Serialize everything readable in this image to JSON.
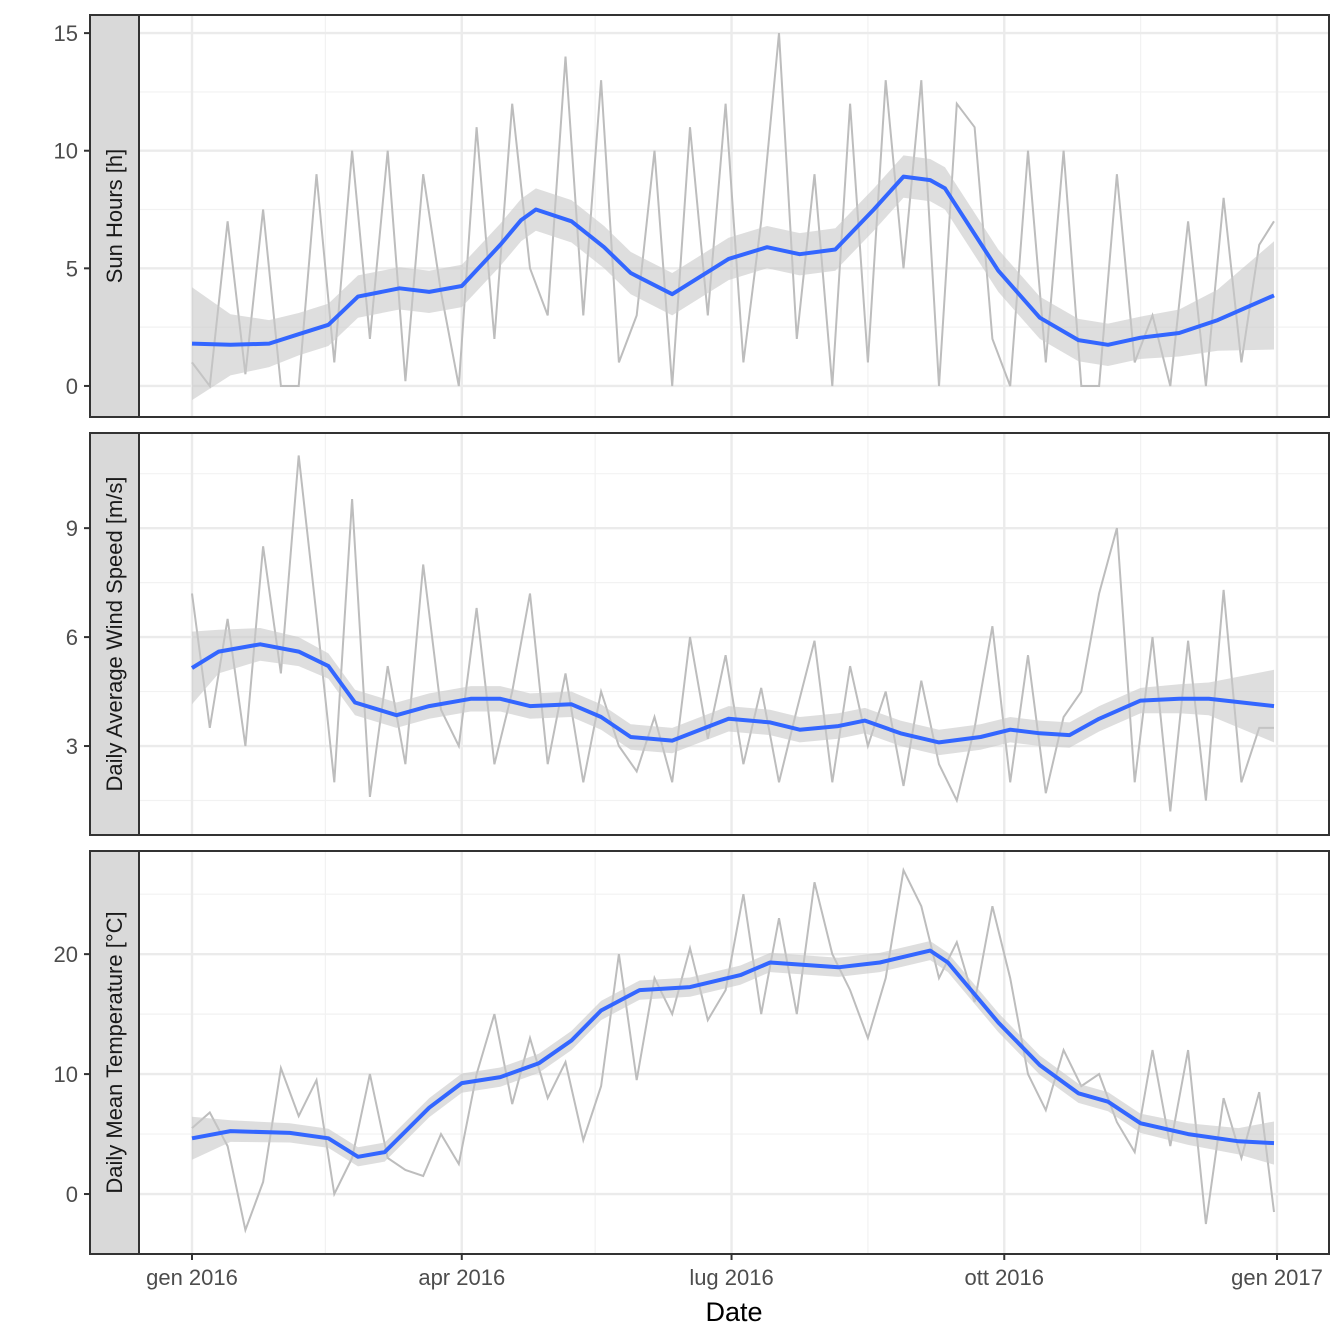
{
  "chart_data": {
    "type": "line",
    "xlabel": "Date",
    "x_ticks": [
      {
        "date": "2016-01-01",
        "label": "gen 2016"
      },
      {
        "date": "2016-04-01",
        "label": "apr 2016"
      },
      {
        "date": "2016-07-01",
        "label": "lug 2016"
      },
      {
        "date": "2016-10-01",
        "label": "ott 2016"
      },
      {
        "date": "2017-01-01",
        "label": "gen 2017"
      }
    ],
    "xlim": [
      "2015-12-14",
      "2017-01-18"
    ],
    "grid": true,
    "colors": {
      "raw": "#bdbdbd",
      "smooth": "#3366ff",
      "band": "#c8c8c8",
      "strip": "#d9d9d9"
    },
    "raw_x": [
      "2016-01-01",
      "2016-01-07",
      "2016-01-13",
      "2016-01-19",
      "2016-01-25",
      "2016-01-31",
      "2016-02-06",
      "2016-02-12",
      "2016-02-18",
      "2016-02-24",
      "2016-03-01",
      "2016-03-07",
      "2016-03-13",
      "2016-03-19",
      "2016-03-25",
      "2016-03-31",
      "2016-04-06",
      "2016-04-12",
      "2016-04-18",
      "2016-04-24",
      "2016-04-30",
      "2016-05-06",
      "2016-05-12",
      "2016-05-18",
      "2016-05-24",
      "2016-05-30",
      "2016-06-05",
      "2016-06-11",
      "2016-06-17",
      "2016-06-23",
      "2016-06-29",
      "2016-07-05",
      "2016-07-11",
      "2016-07-17",
      "2016-07-23",
      "2016-07-29",
      "2016-08-04",
      "2016-08-10",
      "2016-08-16",
      "2016-08-22",
      "2016-08-28",
      "2016-09-03",
      "2016-09-09",
      "2016-09-15",
      "2016-09-21",
      "2016-09-27",
      "2016-10-03",
      "2016-10-09",
      "2016-10-15",
      "2016-10-21",
      "2016-10-27",
      "2016-11-02",
      "2016-11-08",
      "2016-11-14",
      "2016-11-20",
      "2016-11-26",
      "2016-12-02",
      "2016-12-08",
      "2016-12-14",
      "2016-12-20",
      "2016-12-26",
      "2016-12-31"
    ],
    "panels": [
      {
        "strip_label": "Sun Hours [h]",
        "ylim": [
          -1.32,
          15.77
        ],
        "y_ticks": [
          0,
          5,
          10,
          15
        ],
        "y_tick_labels": [
          "0",
          "5",
          "10",
          "15"
        ],
        "raw": [
          1,
          0,
          7,
          0.5,
          7.5,
          0,
          0,
          9,
          1,
          10,
          2,
          10,
          0.2,
          9,
          4,
          0,
          11,
          2,
          12,
          5,
          3,
          14,
          3,
          13,
          1,
          3,
          10,
          0,
          11,
          3,
          12,
          1,
          7,
          15,
          2,
          9,
          0,
          12,
          1,
          13,
          5,
          13,
          0,
          12,
          11,
          2,
          0,
          10,
          1,
          10,
          0,
          0,
          9,
          1,
          3,
          0,
          7,
          0,
          8,
          1,
          6,
          7
        ],
        "smooth_x": [
          "2016-01-01",
          "2016-01-14",
          "2016-01-27",
          "2016-02-06",
          "2016-02-16",
          "2016-02-26",
          "2016-03-11",
          "2016-03-21",
          "2016-04-01",
          "2016-04-14",
          "2016-04-21",
          "2016-04-26",
          "2016-05-08",
          "2016-05-19",
          "2016-05-28",
          "2016-06-11",
          "2016-06-30",
          "2016-07-13",
          "2016-07-24",
          "2016-08-05",
          "2016-08-18",
          "2016-08-28",
          "2016-09-06",
          "2016-09-11",
          "2016-09-29",
          "2016-10-13",
          "2016-10-26",
          "2016-11-05",
          "2016-11-16",
          "2016-11-29",
          "2016-12-12",
          "2016-12-31"
        ],
        "smooth": [
          1.8,
          1.75,
          1.8,
          2.2,
          2.6,
          3.8,
          4.15,
          4.0,
          4.25,
          6.0,
          7.05,
          7.5,
          7.0,
          5.9,
          4.8,
          3.9,
          5.4,
          5.9,
          5.6,
          5.8,
          7.5,
          8.9,
          8.75,
          8.4,
          4.9,
          2.9,
          1.95,
          1.75,
          2.05,
          2.25,
          2.8,
          3.85
        ],
        "ci_halfwidth": [
          2.4,
          1.3,
          1.0,
          0.9,
          0.9,
          0.9,
          0.9,
          0.9,
          0.9,
          0.9,
          0.9,
          0.9,
          0.9,
          0.9,
          0.9,
          0.9,
          0.9,
          0.9,
          0.9,
          0.9,
          0.9,
          0.9,
          0.9,
          0.9,
          0.9,
          0.9,
          0.9,
          0.9,
          0.9,
          1.0,
          1.3,
          2.3
        ]
      },
      {
        "strip_label": "Daily Average Wind Speed [m/s]",
        "ylim": [
          0.55,
          11.62
        ],
        "y_ticks": [
          3,
          6,
          9
        ],
        "y_tick_labels": [
          "3",
          "6",
          "9"
        ],
        "raw": [
          7.2,
          3.5,
          6.5,
          3,
          8.5,
          5,
          11,
          6.6,
          2,
          9.8,
          1.6,
          5.2,
          2.5,
          8,
          4,
          3,
          6.8,
          2.5,
          4.5,
          7.2,
          2.5,
          5,
          2,
          4.5,
          3,
          2.3,
          3.8,
          2,
          6,
          3.2,
          5.5,
          2.5,
          4.6,
          2,
          4,
          5.9,
          2,
          5.2,
          3,
          4.5,
          1.9,
          4.8,
          2.5,
          1.5,
          3.5,
          6.3,
          2,
          5.5,
          1.7,
          3.8,
          4.5,
          7.2,
          9,
          2,
          6,
          1.2,
          5.9,
          1.5,
          7.3,
          2,
          3.5,
          3.5
        ],
        "smooth_x": [
          "2016-01-01",
          "2016-01-10",
          "2016-01-24",
          "2016-02-06",
          "2016-02-16",
          "2016-02-25",
          "2016-03-10",
          "2016-03-21",
          "2016-04-04",
          "2016-04-14",
          "2016-04-24",
          "2016-05-08",
          "2016-05-18",
          "2016-05-28",
          "2016-06-11",
          "2016-06-30",
          "2016-07-14",
          "2016-07-24",
          "2016-08-06",
          "2016-08-15",
          "2016-08-27",
          "2016-09-09",
          "2016-09-23",
          "2016-10-03",
          "2016-10-13",
          "2016-10-23",
          "2016-11-02",
          "2016-11-16",
          "2016-11-29",
          "2016-12-09",
          "2016-12-31"
        ],
        "smooth": [
          5.15,
          5.6,
          5.8,
          5.6,
          5.2,
          4.2,
          3.85,
          4.1,
          4.3,
          4.3,
          4.1,
          4.15,
          3.8,
          3.25,
          3.15,
          3.75,
          3.65,
          3.45,
          3.55,
          3.7,
          3.35,
          3.1,
          3.25,
          3.45,
          3.35,
          3.3,
          3.75,
          4.25,
          4.3,
          4.3,
          4.1
        ],
        "ci_halfwidth": [
          1.0,
          0.6,
          0.45,
          0.4,
          0.35,
          0.35,
          0.35,
          0.35,
          0.35,
          0.35,
          0.35,
          0.35,
          0.35,
          0.35,
          0.35,
          0.35,
          0.35,
          0.35,
          0.35,
          0.35,
          0.35,
          0.35,
          0.35,
          0.35,
          0.35,
          0.35,
          0.35,
          0.35,
          0.4,
          0.45,
          1.0
        ]
      },
      {
        "strip_label": "Daily Mean Temperature [°C]",
        "ylim": [
          -5,
          28.6
        ],
        "y_ticks": [
          0,
          10,
          20
        ],
        "y_tick_labels": [
          "0",
          "10",
          "20"
        ],
        "raw": [
          5.5,
          6.8,
          4,
          -3,
          1,
          10.5,
          6.5,
          9.5,
          0,
          3,
          10,
          3,
          2,
          1.5,
          5,
          2.5,
          10,
          15,
          7.5,
          13,
          8,
          11,
          4.5,
          9,
          20,
          9.5,
          18,
          15,
          20.5,
          14.5,
          17,
          25,
          15,
          23,
          15,
          26,
          20,
          17,
          13,
          18,
          27,
          24,
          18,
          21,
          16,
          24,
          18,
          10,
          7,
          12,
          9,
          10,
          6,
          3.5,
          12,
          4,
          12,
          -2.5,
          8,
          3,
          8.5,
          -1.5
        ],
        "smooth_x": [
          "2016-01-01",
          "2016-01-14",
          "2016-02-03",
          "2016-02-16",
          "2016-02-26",
          "2016-03-06",
          "2016-03-21",
          "2016-04-01",
          "2016-04-14",
          "2016-04-27",
          "2016-05-08",
          "2016-05-18",
          "2016-05-31",
          "2016-06-17",
          "2016-07-04",
          "2016-07-14",
          "2016-08-06",
          "2016-08-20",
          "2016-09-06",
          "2016-09-12",
          "2016-09-29",
          "2016-10-13",
          "2016-10-26",
          "2016-11-05",
          "2016-11-16",
          "2016-12-02",
          "2016-12-19",
          "2016-12-31"
        ],
        "smooth": [
          4.65,
          5.25,
          5.1,
          4.65,
          3.1,
          3.5,
          7.2,
          9.25,
          9.75,
          10.9,
          12.8,
          15.3,
          17.0,
          17.25,
          18.25,
          19.3,
          18.9,
          19.3,
          20.3,
          19.3,
          14.3,
          10.75,
          8.4,
          7.7,
          5.9,
          5.0,
          4.4,
          4.25
        ],
        "ci_halfwidth": [
          1.8,
          0.9,
          0.8,
          0.8,
          0.8,
          0.8,
          0.8,
          0.8,
          0.8,
          0.8,
          0.8,
          0.8,
          0.8,
          0.8,
          0.8,
          0.8,
          0.8,
          0.8,
          0.8,
          0.8,
          0.8,
          0.8,
          0.8,
          0.8,
          0.8,
          0.9,
          1.1,
          1.8
        ]
      }
    ]
  }
}
